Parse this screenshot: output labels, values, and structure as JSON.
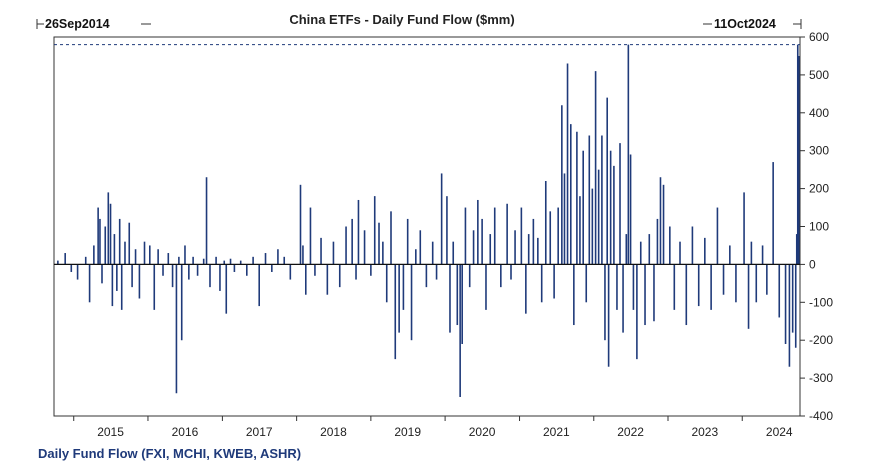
{
  "chart_data": {
    "type": "bar",
    "title": "China ETFs - Daily Fund Flow ($mm)",
    "start_date_label": "26Sep2014",
    "end_date_label": "11Oct2024",
    "legend": "Daily Fund Flow (FXI, MCHI, KWEB, ASHR)",
    "xlim": [
      "2014-09-26",
      "2024-10-11"
    ],
    "ylim": [
      -400,
      600
    ],
    "yticks": [
      600,
      500,
      400,
      300,
      200,
      100,
      0,
      -100,
      -200,
      -300,
      -400
    ],
    "yaxis_position": "right",
    "xtick_labels": [
      "2015",
      "2016",
      "2017",
      "2018",
      "2019",
      "2020",
      "2021",
      "2022",
      "2023",
      "2024"
    ],
    "grid": false,
    "reference_line": 580,
    "series": [
      {
        "color": "#1f3a7a",
        "points": [
          [
            "2014-10-15",
            10
          ],
          [
            "2014-11-20",
            30
          ],
          [
            "2014-12-20",
            -20
          ],
          [
            "2015-01-20",
            -40
          ],
          [
            "2015-03-01",
            20
          ],
          [
            "2015-03-20",
            -100
          ],
          [
            "2015-04-10",
            50
          ],
          [
            "2015-05-01",
            150
          ],
          [
            "2015-05-10",
            120
          ],
          [
            "2015-05-20",
            -50
          ],
          [
            "2015-06-05",
            100
          ],
          [
            "2015-06-20",
            190
          ],
          [
            "2015-07-01",
            160
          ],
          [
            "2015-07-10",
            -110
          ],
          [
            "2015-07-20",
            80
          ],
          [
            "2015-08-01",
            -70
          ],
          [
            "2015-08-15",
            120
          ],
          [
            "2015-08-25",
            -120
          ],
          [
            "2015-09-10",
            60
          ],
          [
            "2015-10-01",
            110
          ],
          [
            "2015-10-15",
            -60
          ],
          [
            "2015-11-01",
            40
          ],
          [
            "2015-11-20",
            -90
          ],
          [
            "2015-12-15",
            60
          ],
          [
            "2016-01-10",
            50
          ],
          [
            "2016-02-01",
            -120
          ],
          [
            "2016-02-20",
            40
          ],
          [
            "2016-03-15",
            -30
          ],
          [
            "2016-04-10",
            30
          ],
          [
            "2016-05-01",
            -60
          ],
          [
            "2016-05-20",
            -340
          ],
          [
            "2016-06-01",
            20
          ],
          [
            "2016-06-15",
            -200
          ],
          [
            "2016-07-01",
            50
          ],
          [
            "2016-07-20",
            -40
          ],
          [
            "2016-08-10",
            20
          ],
          [
            "2016-09-01",
            -30
          ],
          [
            "2016-10-01",
            15
          ],
          [
            "2016-10-15",
            230
          ],
          [
            "2016-11-01",
            -60
          ],
          [
            "2016-12-01",
            20
          ],
          [
            "2016-12-20",
            -70
          ],
          [
            "2017-01-10",
            10
          ],
          [
            "2017-01-20",
            -130
          ],
          [
            "2017-02-10",
            15
          ],
          [
            "2017-03-01",
            -20
          ],
          [
            "2017-04-01",
            10
          ],
          [
            "2017-05-01",
            -30
          ],
          [
            "2017-06-01",
            20
          ],
          [
            "2017-07-01",
            -110
          ],
          [
            "2017-08-01",
            30
          ],
          [
            "2017-09-01",
            -20
          ],
          [
            "2017-10-01",
            40
          ],
          [
            "2017-11-01",
            20
          ],
          [
            "2017-12-01",
            -40
          ],
          [
            "2018-01-20",
            210
          ],
          [
            "2018-02-01",
            50
          ],
          [
            "2018-02-15",
            -80
          ],
          [
            "2018-03-10",
            150
          ],
          [
            "2018-04-01",
            -30
          ],
          [
            "2018-05-01",
            70
          ],
          [
            "2018-06-01",
            -80
          ],
          [
            "2018-07-01",
            60
          ],
          [
            "2018-08-01",
            -60
          ],
          [
            "2018-09-01",
            100
          ],
          [
            "2018-10-01",
            120
          ],
          [
            "2018-10-20",
            -40
          ],
          [
            "2018-11-01",
            170
          ],
          [
            "2018-12-01",
            90
          ],
          [
            "2019-01-01",
            -30
          ],
          [
            "2019-01-20",
            180
          ],
          [
            "2019-02-10",
            110
          ],
          [
            "2019-03-01",
            60
          ],
          [
            "2019-03-20",
            -100
          ],
          [
            "2019-04-10",
            140
          ],
          [
            "2019-05-01",
            -250
          ],
          [
            "2019-05-20",
            -180
          ],
          [
            "2019-06-10",
            -120
          ],
          [
            "2019-07-01",
            120
          ],
          [
            "2019-07-20",
            -200
          ],
          [
            "2019-08-10",
            40
          ],
          [
            "2019-09-01",
            90
          ],
          [
            "2019-10-01",
            -60
          ],
          [
            "2019-11-01",
            60
          ],
          [
            "2019-11-20",
            -40
          ],
          [
            "2019-12-15",
            240
          ],
          [
            "2020-01-10",
            180
          ],
          [
            "2020-01-25",
            -180
          ],
          [
            "2020-02-10",
            60
          ],
          [
            "2020-03-01",
            -160
          ],
          [
            "2020-03-15",
            -350
          ],
          [
            "2020-03-25",
            -210
          ],
          [
            "2020-04-10",
            150
          ],
          [
            "2020-05-01",
            -60
          ],
          [
            "2020-05-20",
            90
          ],
          [
            "2020-06-10",
            170
          ],
          [
            "2020-07-01",
            120
          ],
          [
            "2020-07-20",
            -120
          ],
          [
            "2020-08-10",
            80
          ],
          [
            "2020-09-01",
            150
          ],
          [
            "2020-10-01",
            -60
          ],
          [
            "2020-11-01",
            160
          ],
          [
            "2020-11-20",
            -40
          ],
          [
            "2020-12-10",
            90
          ],
          [
            "2021-01-10",
            150
          ],
          [
            "2021-02-01",
            -130
          ],
          [
            "2021-02-15",
            80
          ],
          [
            "2021-03-10",
            120
          ],
          [
            "2021-04-01",
            70
          ],
          [
            "2021-04-20",
            -100
          ],
          [
            "2021-05-10",
            220
          ],
          [
            "2021-06-01",
            140
          ],
          [
            "2021-06-20",
            -90
          ],
          [
            "2021-07-10",
            150
          ],
          [
            "2021-07-28",
            420
          ],
          [
            "2021-08-10",
            240
          ],
          [
            "2021-08-25",
            530
          ],
          [
            "2021-09-10",
            370
          ],
          [
            "2021-09-25",
            -160
          ],
          [
            "2021-10-10",
            350
          ],
          [
            "2021-10-25",
            180
          ],
          [
            "2021-11-10",
            300
          ],
          [
            "2021-11-25",
            -100
          ],
          [
            "2021-12-10",
            340
          ],
          [
            "2021-12-25",
            200
          ],
          [
            "2022-01-10",
            510
          ],
          [
            "2022-01-25",
            250
          ],
          [
            "2022-02-10",
            340
          ],
          [
            "2022-02-25",
            -200
          ],
          [
            "2022-03-08",
            440
          ],
          [
            "2022-03-15",
            -270
          ],
          [
            "2022-03-25",
            300
          ],
          [
            "2022-04-10",
            260
          ],
          [
            "2022-04-25",
            -120
          ],
          [
            "2022-05-10",
            320
          ],
          [
            "2022-05-25",
            -180
          ],
          [
            "2022-06-10",
            80
          ],
          [
            "2022-06-20",
            580
          ],
          [
            "2022-07-01",
            290
          ],
          [
            "2022-07-15",
            -120
          ],
          [
            "2022-08-01",
            -250
          ],
          [
            "2022-08-20",
            60
          ],
          [
            "2022-09-10",
            -160
          ],
          [
            "2022-10-01",
            80
          ],
          [
            "2022-10-24",
            -150
          ],
          [
            "2022-11-10",
            120
          ],
          [
            "2022-11-25",
            230
          ],
          [
            "2022-12-10",
            210
          ],
          [
            "2023-01-10",
            100
          ],
          [
            "2023-02-01",
            -120
          ],
          [
            "2023-03-01",
            60
          ],
          [
            "2023-04-01",
            -160
          ],
          [
            "2023-05-01",
            100
          ],
          [
            "2023-06-01",
            -110
          ],
          [
            "2023-07-01",
            70
          ],
          [
            "2023-08-01",
            -120
          ],
          [
            "2023-09-01",
            150
          ],
          [
            "2023-10-01",
            -80
          ],
          [
            "2023-11-01",
            50
          ],
          [
            "2023-12-01",
            -100
          ],
          [
            "2024-01-10",
            190
          ],
          [
            "2024-02-01",
            -170
          ],
          [
            "2024-02-15",
            60
          ],
          [
            "2024-03-10",
            -100
          ],
          [
            "2024-04-10",
            50
          ],
          [
            "2024-05-01",
            -80
          ],
          [
            "2024-06-01",
            270
          ],
          [
            "2024-07-01",
            -140
          ],
          [
            "2024-08-01",
            -210
          ],
          [
            "2024-08-20",
            -270
          ],
          [
            "2024-09-05",
            -180
          ],
          [
            "2024-09-20",
            -220
          ],
          [
            "2024-09-25",
            80
          ],
          [
            "2024-09-30",
            580
          ],
          [
            "2024-10-05",
            550
          ]
        ]
      }
    ]
  }
}
